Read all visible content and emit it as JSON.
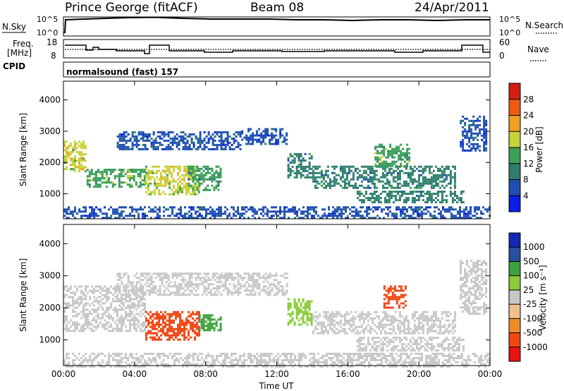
{
  "header": {
    "station": "Prince George (fitACF)",
    "beam": "Beam 08",
    "date": "24/Apr/2011"
  },
  "strip_labels": {
    "nsky": "N.Sky",
    "nsky_ticks": [
      "10^5",
      "10^0"
    ],
    "nsearch": "N.Search",
    "nsearch_ticks": [
      "10^5",
      "10^0"
    ],
    "freq_line1": "Freq.",
    "freq_line2": "[MHz]",
    "freq_ticks": [
      "18",
      "8"
    ],
    "nave": "Nave",
    "nave_ticks": [
      "60",
      "0"
    ],
    "cpid": "CPID",
    "cpid_value": "normalsound (fast) 157"
  },
  "colors": {
    "power_scale": [
      "#0a1ee6",
      "#1f4fb4",
      "#2e7d6e",
      "#3aa05a",
      "#c8d23c",
      "#f0a01e",
      "#ee5a14",
      "#d21e14"
    ],
    "velocity_scale": [
      "#e61414",
      "#f04614",
      "#f08c28",
      "#f0c090",
      "#c8c8c8",
      "#8ccc3c",
      "#3ca03c",
      "#2850a0",
      "#1428b4"
    ],
    "ground_scatter": "#c8c8c8"
  },
  "chart_data": [
    {
      "type": "heatmap",
      "name": "power",
      "xlabel": "",
      "ylabel": "Slant Range [km]",
      "xlim": [
        0,
        24
      ],
      "ylim": [
        200,
        4600
      ],
      "yticks": [
        "1000",
        "2000",
        "3000",
        "4000"
      ],
      "colorbar": {
        "label": "Power [dB]",
        "range": [
          0,
          32
        ],
        "ticks": [
          "4",
          "8",
          "12",
          "16",
          "20",
          "24",
          "28"
        ]
      },
      "regions": [
        {
          "x": [
            0.0,
            1.3
          ],
          "y": [
            1700,
            2700
          ],
          "value": 18
        },
        {
          "x": [
            1.3,
            4.6
          ],
          "y": [
            1200,
            1800
          ],
          "value": 15
        },
        {
          "x": [
            4.6,
            7.6
          ],
          "y": [
            1000,
            1900
          ],
          "value": 18
        },
        {
          "x": [
            7.0,
            8.8
          ],
          "y": [
            1100,
            1900
          ],
          "value": 12
        },
        {
          "x": [
            3.0,
            10.0
          ],
          "y": [
            2400,
            3000
          ],
          "value": 7
        },
        {
          "x": [
            10.0,
            12.6
          ],
          "y": [
            2600,
            3100
          ],
          "value": 7
        },
        {
          "x": [
            12.6,
            14.0
          ],
          "y": [
            1500,
            2300
          ],
          "value": 10
        },
        {
          "x": [
            14.0,
            22.0
          ],
          "y": [
            1200,
            1900
          ],
          "value": 11
        },
        {
          "x": [
            16.5,
            22.5
          ],
          "y": [
            700,
            1100
          ],
          "value": 11
        },
        {
          "x": [
            17.5,
            19.5
          ],
          "y": [
            1900,
            2600
          ],
          "value": 13
        },
        {
          "x": [
            22.3,
            23.8
          ],
          "y": [
            2400,
            3500
          ],
          "value": 6
        },
        {
          "x": [
            0.0,
            24.0
          ],
          "y": [
            200,
            600
          ],
          "value": 6
        }
      ]
    },
    {
      "type": "heatmap",
      "name": "velocity",
      "xlabel": "Time UT",
      "ylabel": "Slant Range [km]",
      "xlim": [
        0,
        24
      ],
      "ylim": [
        200,
        4600
      ],
      "xticks": [
        "00:00",
        "04:00",
        "08:00",
        "12:00",
        "16:00",
        "20:00",
        "00:00"
      ],
      "yticks": [
        "1000",
        "2000",
        "3000",
        "4000"
      ],
      "colorbar": {
        "label": "Velocity [m s⁻¹]",
        "ticks": [
          "1000",
          "500",
          "100",
          "25",
          "-25",
          "-100",
          "-500",
          "-1000"
        ]
      },
      "regions": [
        {
          "x": [
            0.0,
            4.6
          ],
          "y": [
            1300,
            2700
          ],
          "value": 0
        },
        {
          "x": [
            4.6,
            7.6
          ],
          "y": [
            1000,
            1900
          ],
          "value": -300
        },
        {
          "x": [
            7.6,
            8.8
          ],
          "y": [
            1300,
            1800
          ],
          "value": 300
        },
        {
          "x": [
            3.0,
            12.6
          ],
          "y": [
            2400,
            3100
          ],
          "value": 0
        },
        {
          "x": [
            12.6,
            14.0
          ],
          "y": [
            1500,
            2300
          ],
          "value": 100
        },
        {
          "x": [
            14.0,
            22.0
          ],
          "y": [
            1200,
            1900
          ],
          "value": 0
        },
        {
          "x": [
            16.5,
            22.5
          ],
          "y": [
            700,
            1100
          ],
          "value": 0
        },
        {
          "x": [
            18.0,
            19.2
          ],
          "y": [
            2000,
            2700
          ],
          "value": -400
        },
        {
          "x": [
            22.3,
            23.8
          ],
          "y": [
            1800,
            3500
          ],
          "value": 0
        },
        {
          "x": [
            0.0,
            24.0
          ],
          "y": [
            200,
            600
          ],
          "value": 0
        }
      ]
    }
  ]
}
